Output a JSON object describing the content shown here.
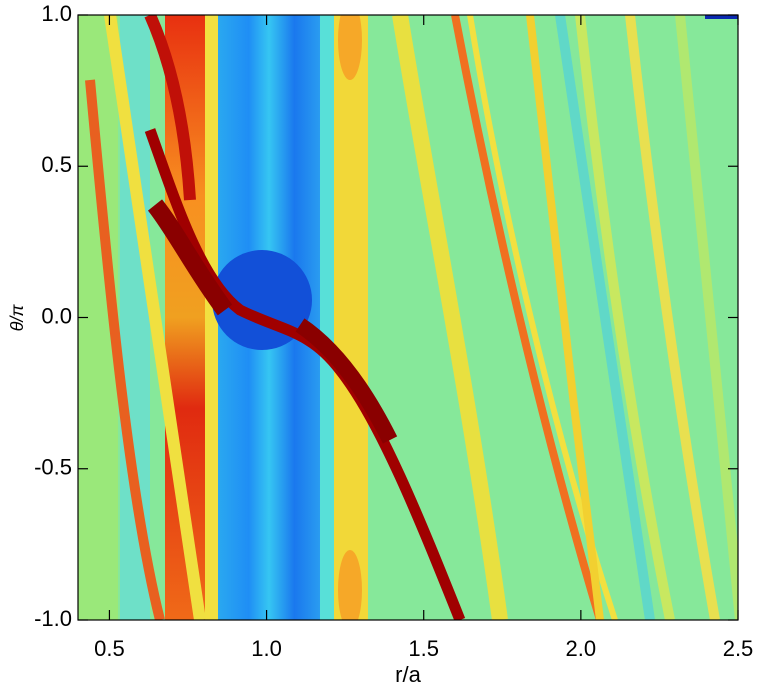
{
  "chart_data": {
    "type": "heatmap",
    "x_label": "r/a",
    "y_label": "θ/π",
    "xlim": [
      0.4,
      2.5
    ],
    "ylim": [
      -1,
      1
    ],
    "xticks": [
      0.5,
      {
        "value": 1,
        "label": "1.0"
      },
      1.5,
      {
        "value": 2,
        "label": "2.0"
      },
      2.5
    ],
    "yticks": [
      {
        "value": -1,
        "label": "-1.0"
      },
      -0.5,
      {
        "value": 0,
        "label": "0.0"
      },
      0.5,
      {
        "value": 1,
        "label": "1.0"
      }
    ]
  }
}
